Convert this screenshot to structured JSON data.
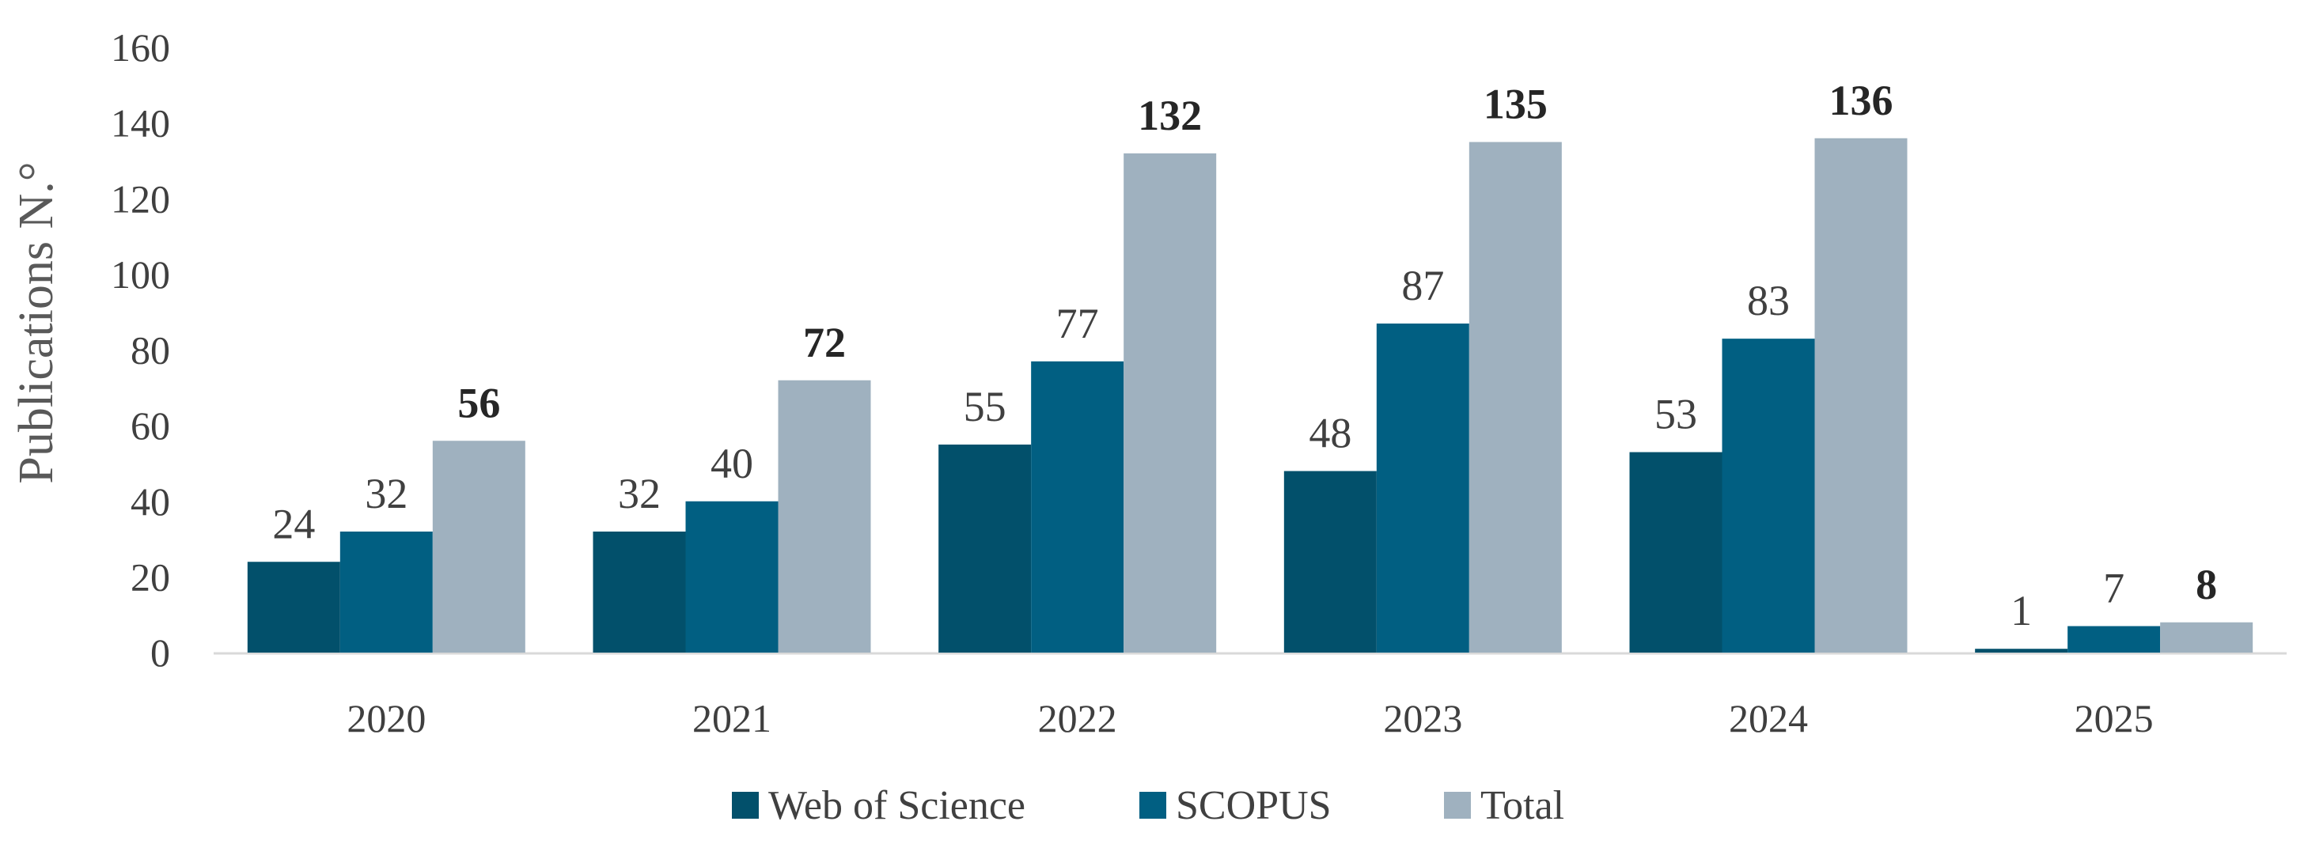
{
  "chart_data": {
    "type": "bar",
    "title": "",
    "xlabel": "",
    "ylabel": "Publications N.°",
    "ylim": [
      0,
      160
    ],
    "yticks": [
      0,
      20,
      40,
      60,
      80,
      100,
      120,
      140,
      160
    ],
    "grid": false,
    "legend_position": "bottom",
    "categories": [
      "2020",
      "2021",
      "2022",
      "2023",
      "2024",
      "2025"
    ],
    "series": [
      {
        "name": "Web of Science",
        "color": "#02506b",
        "label_bold": false,
        "values": [
          24,
          32,
          55,
          48,
          53,
          1
        ]
      },
      {
        "name": "SCOPUS",
        "color": "#015f82",
        "label_bold": false,
        "values": [
          32,
          40,
          77,
          87,
          83,
          7
        ]
      },
      {
        "name": "Total",
        "color": "#9fb1bf",
        "label_bold": true,
        "values": [
          56,
          72,
          132,
          135,
          136,
          8
        ]
      }
    ]
  }
}
